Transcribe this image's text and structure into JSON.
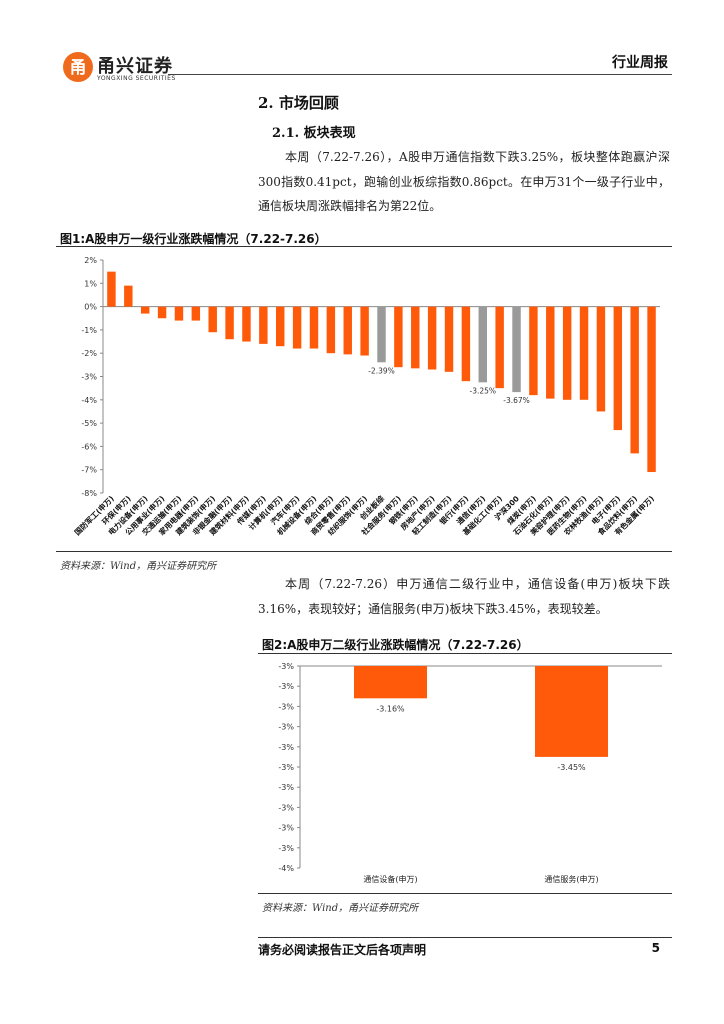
{
  "header": {
    "brand_cn": "甬兴证券",
    "brand_en": "YONGXING SECURITIES",
    "report_type": "行业周报"
  },
  "section": {
    "heading": "2. 市场回顾",
    "subheading": "2.1. 板块表现",
    "paragraph1": "本周（7.22-7.26），A股申万通信指数下跌3.25%，板块整体跑赢沪深300指数0.41pct，跑输创业板综指数0.86pct。在申万31个一级子行业中，通信板块周涨跌幅排名为第22位。",
    "paragraph2": "本周（7.22-7.26）申万通信二级行业中，通信设备(申万)板块下跌3.16%，表现较好；通信服务(申万)板块下跌3.45%，表现较差。"
  },
  "figure1": {
    "caption": "图1:A股申万一级行业涨跌幅情况（7.22-7.26）",
    "source": "资料来源：Wind，甬兴证券研究所"
  },
  "figure2": {
    "caption": "图2:A股申万二级行业涨跌幅情况（7.22-7.26）",
    "source": "资料来源：Wind，甬兴证券研究所"
  },
  "footer": {
    "disclaimer": "请务必阅读报告正文后各项声明",
    "page_number": "5"
  },
  "colors": {
    "bar": "#FF5A0A",
    "highlight": "#9A9A9A",
    "brand": "#F06A1E"
  },
  "chart_data": [
    {
      "type": "bar",
      "title": "图1:A股申万一级行业涨跌幅情况（7.22-7.26）",
      "ylabel": "",
      "xlabel": "",
      "ylim": [
        -8,
        2
      ],
      "yticks": [
        "2%",
        "1%",
        "0%",
        "-1%",
        "-2%",
        "-3%",
        "-4%",
        "-5%",
        "-6%",
        "-7%",
        "-8%"
      ],
      "categories": [
        "国防军工(申万)",
        "环保(申万)",
        "电力设备(申万)",
        "公用事业(申万)",
        "交通运输(申万)",
        "家用电器(申万)",
        "建筑装饰(申万)",
        "非银金融(申万)",
        "建筑材料(申万)",
        "传媒(申万)",
        "计算机(申万)",
        "汽车(申万)",
        "机械设备(申万)",
        "综合(申万)",
        "商贸零售(申万)",
        "纺织服饰(申万)",
        "创业板综",
        "社会服务(申万)",
        "钢铁(申万)",
        "房地产(申万)",
        "轻工制造(申万)",
        "银行(申万)",
        "通信(申万)",
        "基础化工(申万)",
        "沪深300",
        "煤炭(申万)",
        "石油石化(申万)",
        "美容护理(申万)",
        "医药生物(申万)",
        "农林牧渔(申万)",
        "电子(申万)",
        "食品饮料(申万)",
        "有色金属(申万)"
      ],
      "values": [
        1.5,
        0.9,
        -0.3,
        -0.5,
        -0.6,
        -0.6,
        -1.1,
        -1.4,
        -1.5,
        -1.6,
        -1.7,
        -1.8,
        -1.8,
        -2.0,
        -2.05,
        -2.1,
        -2.39,
        -2.6,
        -2.65,
        -2.7,
        -2.8,
        -3.2,
        -3.25,
        -3.5,
        -3.67,
        -3.8,
        -3.95,
        -4.0,
        -4.0,
        -4.5,
        -5.3,
        -6.3,
        -7.1
      ],
      "highlighted": [
        "创业板综",
        "通信(申万)",
        "沪深300"
      ],
      "data_labels": [
        {
          "category": "创业板综",
          "text": "-2.39%"
        },
        {
          "category": "通信(申万)",
          "text": "-3.25%"
        },
        {
          "category": "沪深300",
          "text": "-3.67%"
        }
      ]
    },
    {
      "type": "bar",
      "title": "图2:A股申万二级行业涨跌幅情况（7.22-7.26）",
      "ylim": [
        -4,
        -3
      ],
      "yticks": [
        "-3%",
        "-3%",
        "-3%",
        "-3%",
        "-3%",
        "-3%",
        "-3%",
        "-3%",
        "-3%",
        "-3%",
        "-4%"
      ],
      "categories": [
        "通信设备(申万)",
        "通信服务(申万)"
      ],
      "values": [
        -3.16,
        -3.45
      ],
      "data_labels": [
        "-3.16%",
        "-3.45%"
      ]
    }
  ]
}
